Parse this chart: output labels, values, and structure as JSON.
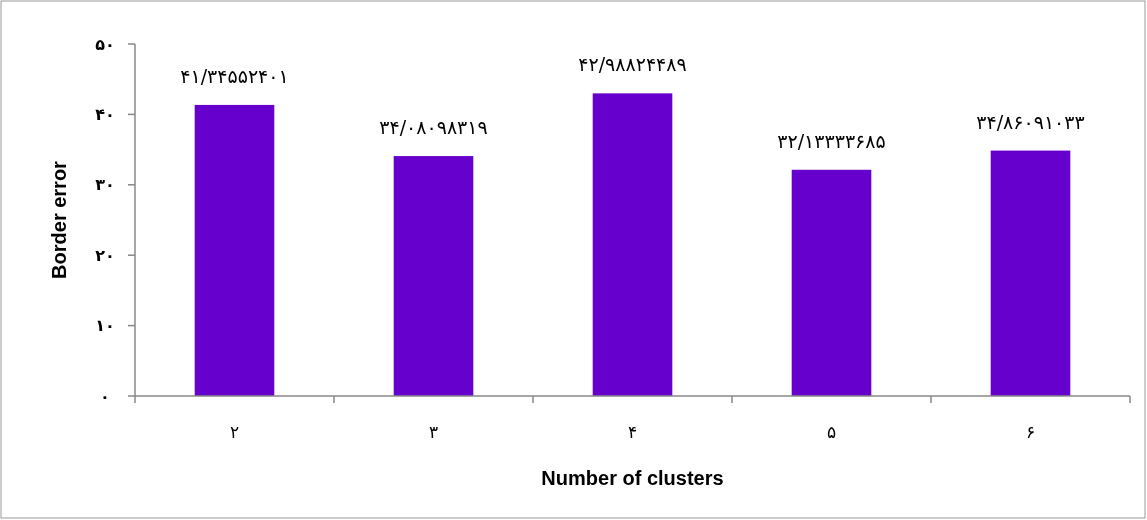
{
  "chart_data": {
    "type": "bar",
    "xlabel": "Number of clusters",
    "ylabel": "Border error",
    "categories": [
      "۲",
      "۳",
      "۴",
      "۵",
      "۶"
    ],
    "values": [
      41.34552401,
      34.08098319,
      42.98824489,
      32.13333685,
      34.86091033
    ],
    "value_labels": [
      "۴۱/۳۴۵۵۲۴۰۱",
      "۳۴/۰۸۰۹۸۳۱۹",
      "۴۲/۹۸۸۲۴۴۸۹",
      "۳۲/۱۳۳۳۳۶۸۵",
      "۳۴/۸۶۰۹۱۰۳۳"
    ],
    "color": "#6600cc",
    "ylim": [
      0,
      50
    ],
    "yticks": [
      {
        "value": 0,
        "label": "۰"
      },
      {
        "value": 10,
        "label": "۱۰"
      },
      {
        "value": 20,
        "label": "۲۰"
      },
      {
        "value": 30,
        "label": "۳۰"
      },
      {
        "value": 40,
        "label": "۴۰"
      },
      {
        "value": 50,
        "label": "۵۰"
      }
    ],
    "grid": false
  }
}
